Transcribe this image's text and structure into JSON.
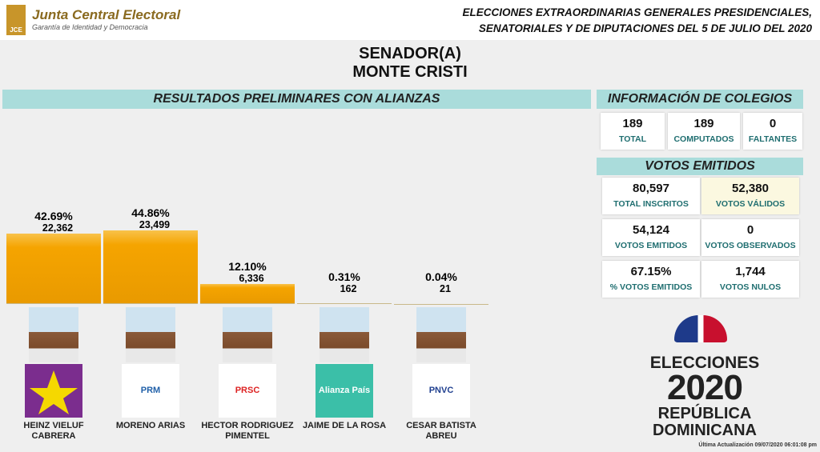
{
  "header": {
    "logo": "JCE",
    "org": "Junta Central Electoral",
    "tagline": "Garantía de Identidad y Democracia",
    "election": [
      "ELECCIONES EXTRAORDINARIAS GENERALES PRESIDENCIALES,",
      "SENATORIALES Y DE DIPUTACIONES DEL 5 DE JULIO DEL 2020"
    ]
  },
  "title": [
    "SENADOR(A)",
    "MONTE CRISTI"
  ],
  "chart_data": {
    "type": "bar",
    "title": "RESULTADOS PRELIMINARES CON ALIANZAS",
    "categories": [
      "HEINZ VIELUF CABRERA",
      "MORENO ARIAS",
      "HECTOR RODRIGUEZ PIMENTEL",
      "JAIME DE LA ROSA",
      "CESAR BATISTA ABREU"
    ],
    "values": [
      22362,
      23499,
      6336,
      162,
      21
    ],
    "value_labels": [
      "22,362",
      "23,499",
      "6,336",
      "162",
      "21"
    ],
    "percentages": [
      42.69,
      44.86,
      12.1,
      0.31,
      0.04
    ],
    "percentage_labels": [
      "42.69%",
      "44.86%",
      "12.10%",
      "0.31%",
      "0.04%"
    ],
    "color": "#f5a400"
  },
  "party_logos": [
    "",
    "PRM",
    "PRSC",
    "Alianza País",
    "PNVC"
  ],
  "colegios": {
    "title": "INFORMACIÓN DE COLEGIOS",
    "items": [
      {
        "value": "189",
        "label": "TOTAL"
      },
      {
        "value": "189",
        "label": "COMPUTADOS"
      },
      {
        "value": "0",
        "label": "FALTANTES"
      }
    ]
  },
  "votos": {
    "title": "VOTOS EMITIDOS",
    "items": [
      {
        "value": "80,597",
        "label": "TOTAL INSCRITOS"
      },
      {
        "value": "52,380",
        "label": "VOTOS VÁLIDOS"
      },
      {
        "value": "54,124",
        "label": "VOTOS EMITIDOS"
      },
      {
        "value": "0",
        "label": "VOTOS OBSERVADOS"
      },
      {
        "value": "67.15%",
        "label": "% VOTOS EMITIDOS"
      },
      {
        "value": "1,744",
        "label": "VOTOS NULOS"
      }
    ]
  },
  "brand": {
    "line1": "ELECCIONES",
    "year": "2020",
    "line2": "REPÚBLICA",
    "line3": "DOMINICANA"
  },
  "footer": "Última Actualización 09/07/2020 06:01:08 pm"
}
